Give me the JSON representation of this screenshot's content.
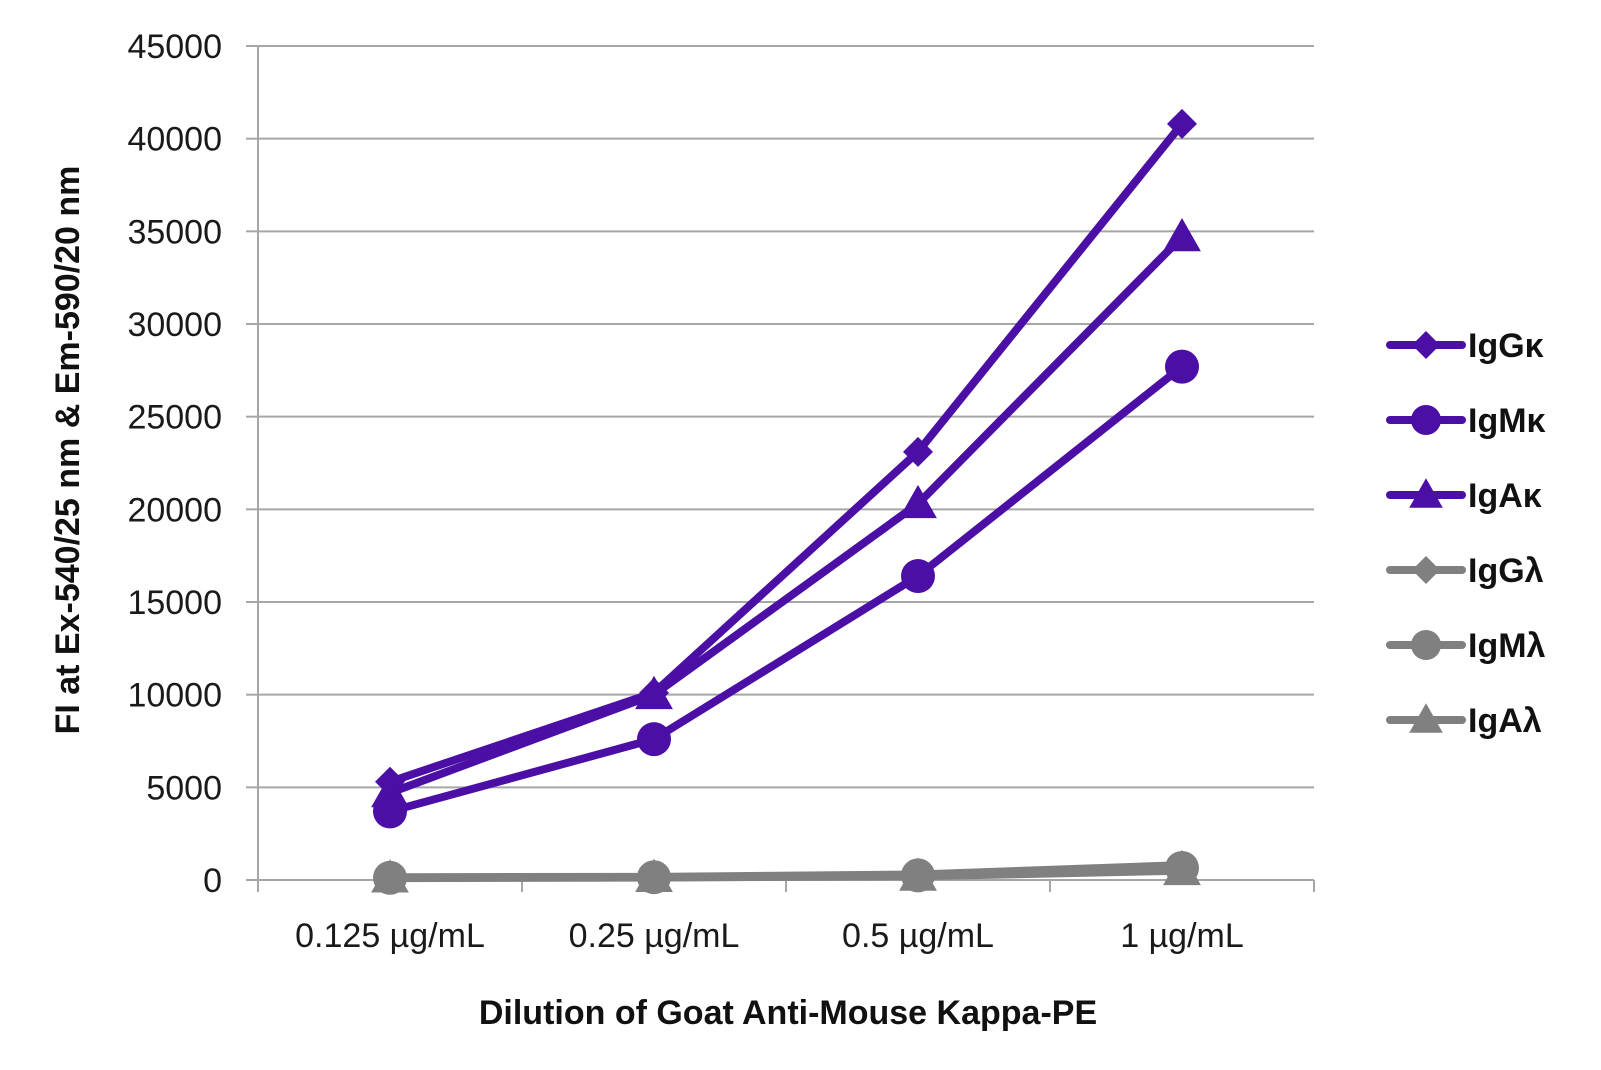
{
  "chart_data": {
    "type": "line",
    "categories": [
      "0.125 µg/mL",
      "0.25 µg/mL",
      "0.5 µg/mL",
      "1 µg/mL"
    ],
    "ylim": [
      0,
      45000
    ],
    "yticks": [
      0,
      5000,
      10000,
      15000,
      20000,
      25000,
      30000,
      35000,
      40000,
      45000
    ],
    "xlabel": "Dilution of Goat Anti-Mouse Kappa-PE",
    "ylabel": "FI at Ex-540/25 nm & Em-590/20 nm",
    "grid": true,
    "legend_position": "right",
    "series": [
      {
        "name": "IgGκ",
        "marker": "diamond",
        "color": "#4b0fa6",
        "values": [
          5300,
          10100,
          23100,
          40800
        ]
      },
      {
        "name": "IgMκ",
        "marker": "circle",
        "color": "#4b0fa6",
        "values": [
          3700,
          7600,
          16400,
          27700
        ]
      },
      {
        "name": "IgAκ",
        "marker": "triangle",
        "color": "#4b0fa6",
        "values": [
          4700,
          10000,
          20300,
          34700
        ]
      },
      {
        "name": "IgGλ",
        "marker": "diamond",
        "color": "#808080",
        "values": [
          150,
          170,
          300,
          800
        ]
      },
      {
        "name": "IgMλ",
        "marker": "circle",
        "color": "#808080",
        "values": [
          120,
          150,
          250,
          650
        ]
      },
      {
        "name": "IgAλ",
        "marker": "triangle",
        "color": "#808080",
        "values": [
          100,
          130,
          200,
          500
        ]
      }
    ]
  }
}
